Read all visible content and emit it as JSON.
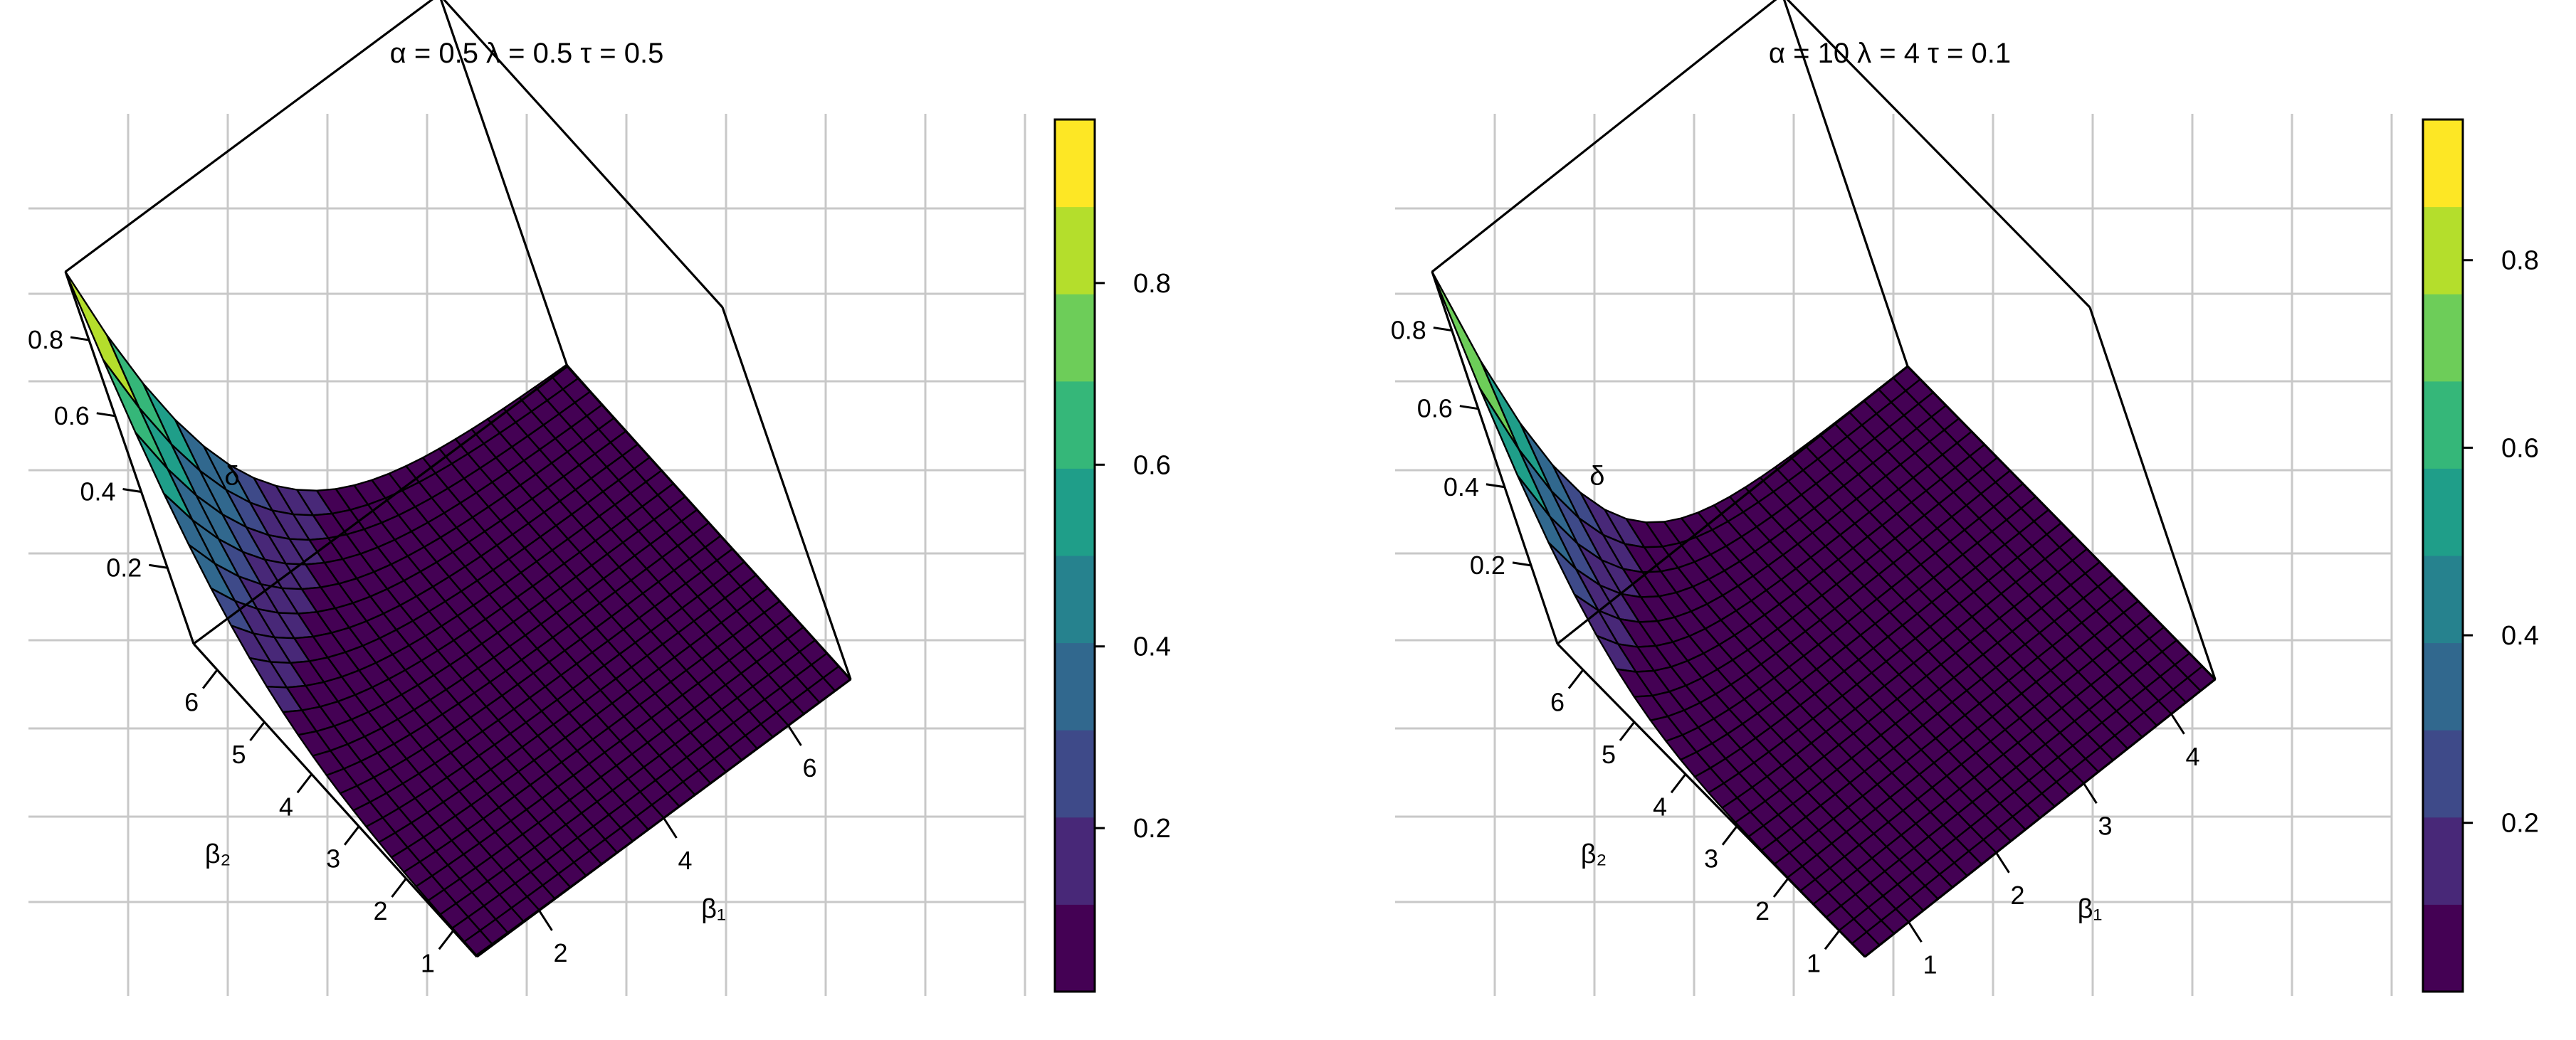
{
  "chart_data": [
    {
      "type": "surface",
      "title": "α = 0.5 λ = 0.5 τ = 0.5",
      "axes": {
        "x": {
          "label": "β₁",
          "ticks": [
            "2",
            "4",
            "6"
          ],
          "range": [
            1,
            7
          ]
        },
        "y": {
          "label": "β₂",
          "ticks": [
            "1",
            "2",
            "3",
            "4",
            "5",
            "6"
          ],
          "range": [
            0.5,
            6.5
          ]
        },
        "z": {
          "label": "δ",
          "ticks": [
            "0.2",
            "0.4",
            "0.6",
            "0.8"
          ],
          "range": [
            0,
            0.98
          ]
        }
      },
      "colorbar": {
        "ticks": [
          "0.2",
          "0.4",
          "0.6",
          "0.8"
        ],
        "range": [
          0.02,
          0.98
        ]
      },
      "surface_params": {
        "k_x": 0.9,
        "k_y": 0.9,
        "z_max": 0.98,
        "x_min": 1,
        "x_max": 7,
        "y_min": 0.5,
        "y_max": 6.5
      },
      "grid": true
    },
    {
      "type": "surface",
      "title": "α = 10 λ = 4 τ = 0.1",
      "axes": {
        "x": {
          "label": "β₁",
          "ticks": [
            "1",
            "2",
            "3",
            "4"
          ],
          "range": [
            0.5,
            4.5
          ]
        },
        "y": {
          "label": "β₂",
          "ticks": [
            "1",
            "2",
            "3",
            "4",
            "5",
            "6"
          ],
          "range": [
            0.5,
            6.5
          ]
        },
        "z": {
          "label": "δ",
          "ticks": [
            "0.2",
            "0.4",
            "0.6",
            "0.8"
          ],
          "range": [
            0,
            0.95
          ]
        }
      },
      "colorbar": {
        "ticks": [
          "0.2",
          "0.4",
          "0.6",
          "0.8"
        ],
        "range": [
          0.02,
          0.95
        ]
      },
      "surface_params": {
        "k_x": 1.9,
        "k_y": 1.3,
        "z_max": 0.95,
        "x_min": 0.5,
        "x_max": 4.5,
        "y_min": 0.5,
        "y_max": 6.5
      },
      "grid": true
    }
  ],
  "colors": {
    "viridis": [
      "#440154",
      "#482878",
      "#3E4A89",
      "#31688E",
      "#26828E",
      "#1F9E89",
      "#35B779",
      "#6DCD59",
      "#B4DE2C",
      "#FDE725"
    ],
    "grid": "#c8c8c8",
    "axis": "#000000"
  }
}
